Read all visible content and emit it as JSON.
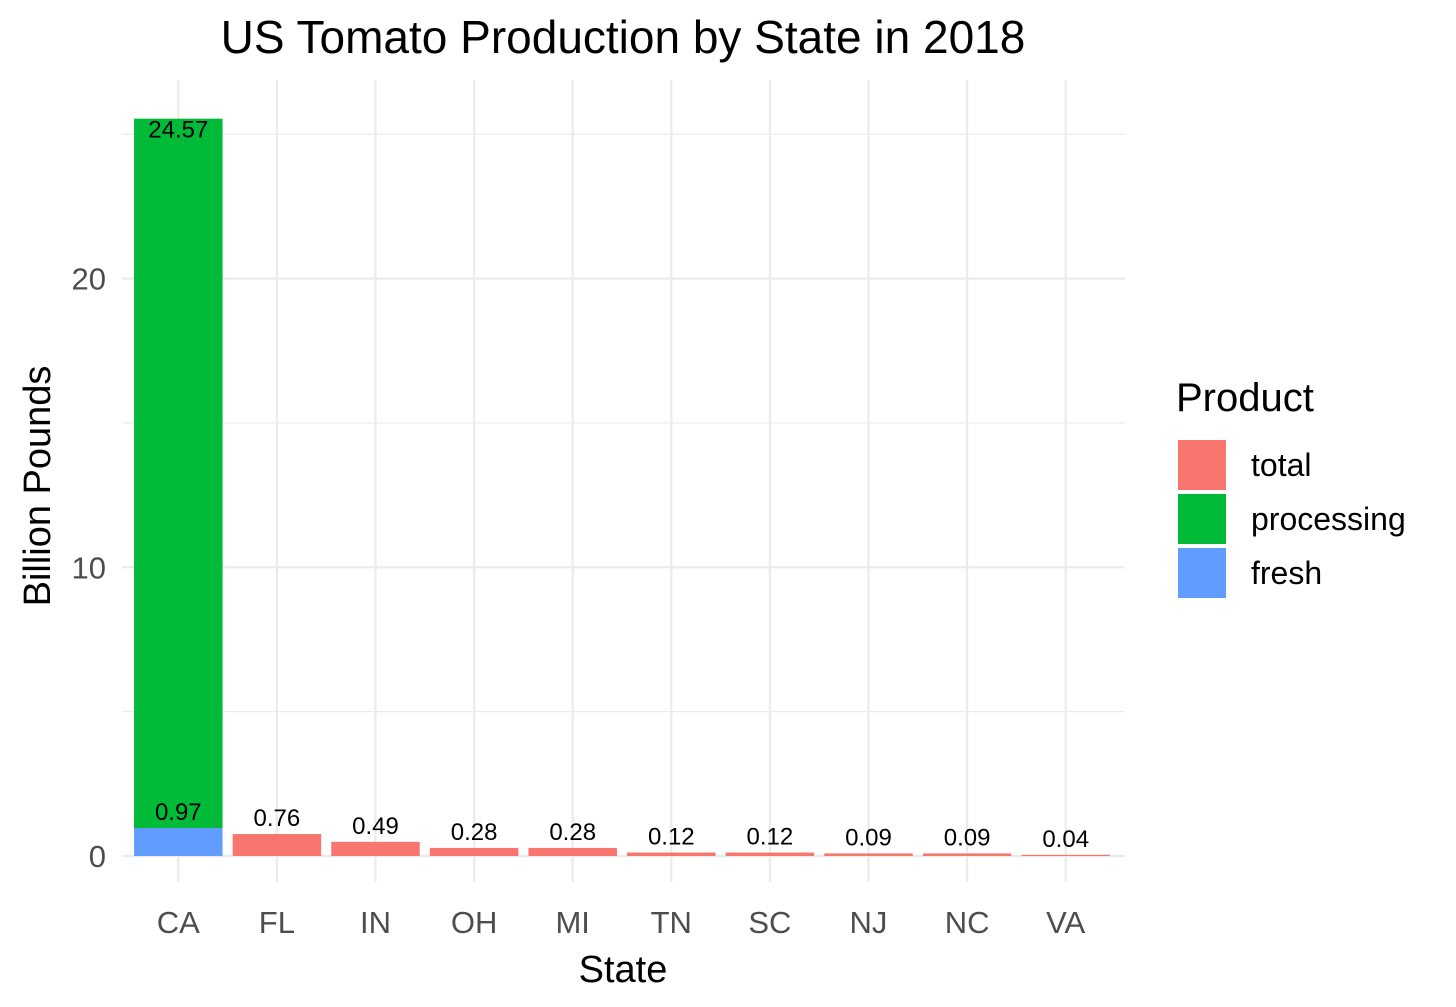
{
  "chart_data": {
    "type": "bar",
    "stacked": true,
    "title": "US Tomato Production by State in 2018",
    "xlabel": "State",
    "ylabel": "Billion Pounds",
    "categories": [
      "CA",
      "FL",
      "IN",
      "OH",
      "MI",
      "TN",
      "SC",
      "NJ",
      "NC",
      "VA"
    ],
    "ylim": [
      0,
      25.5
    ],
    "yticks": [
      0,
      10,
      20
    ],
    "yticks_minor": [
      5,
      15,
      25
    ],
    "grid": true,
    "legend": {
      "title": "Product",
      "placement": "right"
    },
    "series": [
      {
        "name": "total",
        "color": "#F8766D",
        "values": [
          0,
          0.76,
          0.49,
          0.28,
          0.28,
          0.12,
          0.12,
          0.09,
          0.09,
          0.04
        ],
        "labels": [
          "",
          "0.76",
          "0.49",
          "0.28",
          "0.28",
          "0.12",
          "0.12",
          "0.09",
          "0.09",
          "0.04"
        ]
      },
      {
        "name": "processing",
        "color": "#00BA38",
        "values": [
          24.57,
          0,
          0,
          0,
          0,
          0,
          0,
          0,
          0,
          0
        ],
        "labels": [
          "24.57",
          "",
          "",
          "",
          "",
          "",
          "",
          "",
          "",
          ""
        ]
      },
      {
        "name": "fresh",
        "color": "#619CFF",
        "values": [
          0.97,
          0,
          0,
          0,
          0,
          0,
          0,
          0,
          0,
          0
        ],
        "labels": [
          "0.97",
          "",
          "",
          "",
          "",
          "",
          "",
          "",
          "",
          ""
        ]
      }
    ]
  }
}
